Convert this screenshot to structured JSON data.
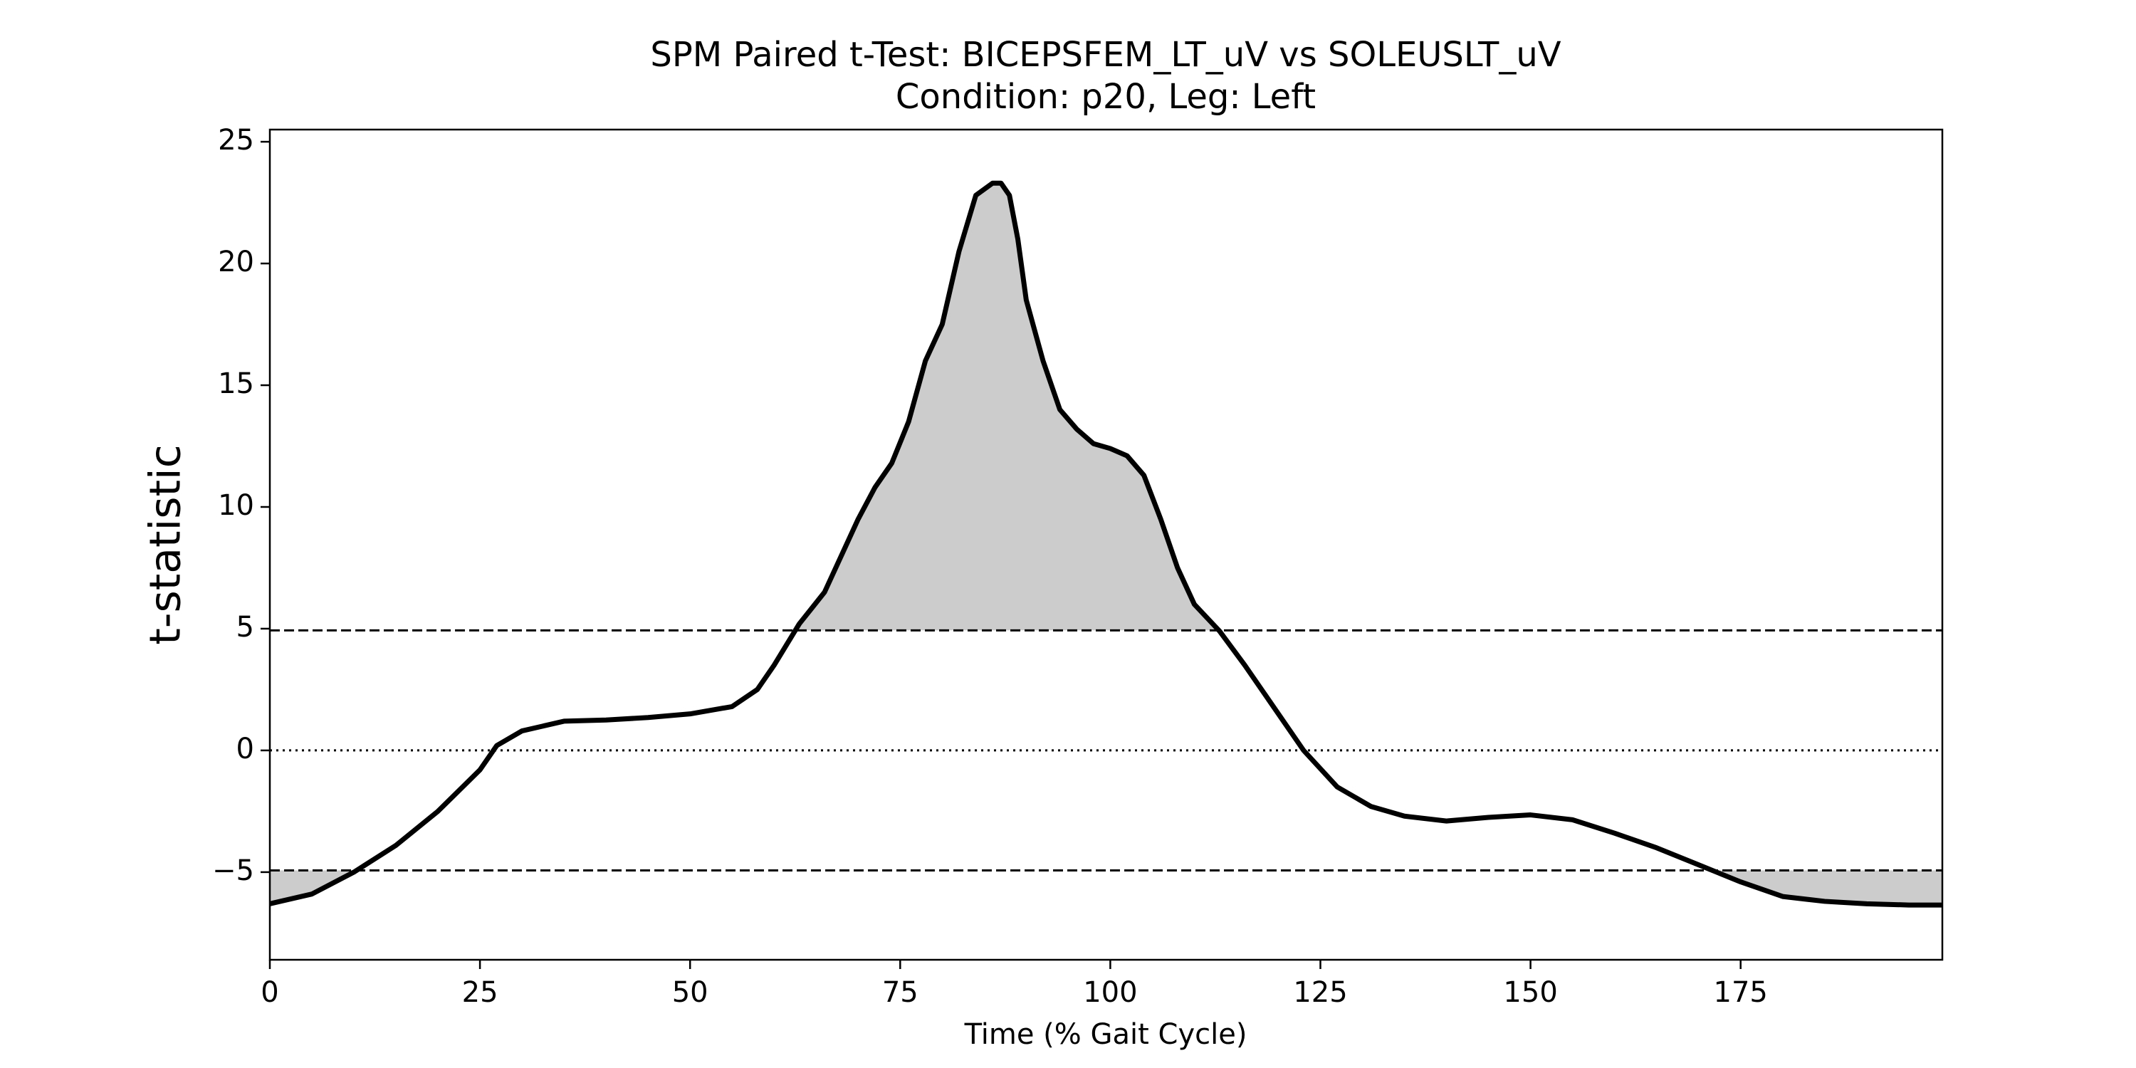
{
  "chart_data": {
    "type": "line",
    "title": "SPM Paired t-Test: BICEPSFEM_LT_uV vs SOLEUSLT_uV",
    "subtitle": "Condition: p20, Leg: Left",
    "x_label": "Time (% Gait Cycle)",
    "y_label": "t-statistic",
    "x": [
      0,
      5,
      10,
      15,
      20,
      25,
      27,
      30,
      35,
      40,
      45,
      50,
      55,
      58,
      60,
      63,
      66,
      70,
      72,
      74,
      76,
      78,
      80,
      82,
      84,
      86,
      87,
      88,
      89,
      90,
      92,
      94,
      96,
      98,
      100,
      102,
      104,
      106,
      108,
      110,
      113,
      116,
      120,
      123,
      127,
      131,
      135,
      140,
      145,
      150,
      155,
      160,
      165,
      170,
      175,
      180,
      185,
      190,
      195,
      199
    ],
    "values": [
      -6.3,
      -5.9,
      -5.0,
      -3.9,
      -2.5,
      -0.8,
      0.2,
      0.8,
      1.2,
      1.25,
      1.35,
      1.5,
      1.8,
      2.5,
      3.5,
      5.2,
      6.5,
      9.5,
      10.8,
      11.8,
      13.5,
      16,
      17.5,
      20.5,
      22.8,
      23.3,
      23.3,
      22.8,
      21,
      18.5,
      16,
      14,
      13.2,
      12.6,
      12.4,
      12.1,
      11.3,
      9.5,
      7.5,
      6,
      4.9,
      3.5,
      1.5,
      0,
      -1.5,
      -2.3,
      -2.7,
      -2.9,
      -2.75,
      -2.65,
      -2.85,
      -3.4,
      -4,
      -4.7,
      -5.4,
      -6,
      -6.2,
      -6.3,
      -6.35,
      -6.35
    ],
    "color": "#000000",
    "fill_color": "#cccccc",
    "threshold": 4.93,
    "reference_line": 0,
    "xlim": [
      0,
      199
    ],
    "ylim": [
      -8.6,
      25.5
    ],
    "xticks": [
      0,
      25,
      50,
      75,
      100,
      125,
      150,
      175
    ],
    "yticks": [
      {
        "value": -5,
        "label": "−5"
      },
      0,
      5,
      10,
      15,
      20,
      25
    ]
  }
}
